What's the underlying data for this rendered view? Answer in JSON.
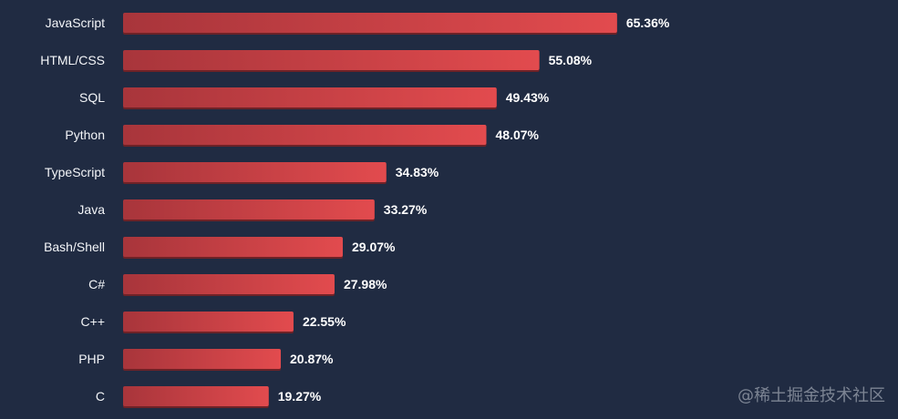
{
  "chart_data": {
    "type": "bar",
    "orientation": "horizontal",
    "categories": [
      "JavaScript",
      "HTML/CSS",
      "SQL",
      "Python",
      "TypeScript",
      "Java",
      "Bash/Shell",
      "C#",
      "C++",
      "PHP",
      "C"
    ],
    "values": [
      65.36,
      55.08,
      49.43,
      48.07,
      34.83,
      33.27,
      29.07,
      27.98,
      22.55,
      20.87,
      19.27
    ],
    "value_labels": [
      "65.36%",
      "55.08%",
      "49.43%",
      "48.07%",
      "34.83%",
      "33.27%",
      "29.07%",
      "27.98%",
      "22.55%",
      "20.87%",
      "19.27%"
    ],
    "xlim": [
      0,
      100
    ],
    "grid": false,
    "legend": "none",
    "title": "",
    "xlabel": "",
    "ylabel": ""
  },
  "colors": {
    "background": "#202b42",
    "bar_start": "#a8353b",
    "bar_end": "#e24b4e",
    "bar_shadow": "#6e2227",
    "label_text": "#f3f5f8",
    "value_text": "#ffffff"
  },
  "watermark": "@稀土掘金技术社区"
}
